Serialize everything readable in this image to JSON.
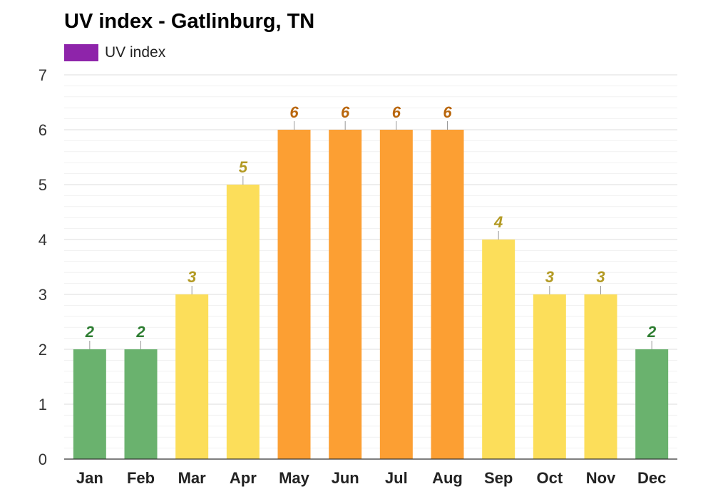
{
  "chart_data": {
    "type": "bar",
    "title": "UV index - Gatlinburg, TN",
    "categories": [
      "Jan",
      "Feb",
      "Mar",
      "Apr",
      "May",
      "Jun",
      "Jul",
      "Aug",
      "Sep",
      "Oct",
      "Nov",
      "Dec"
    ],
    "series": [
      {
        "name": "UV index",
        "values": [
          2,
          2,
          3,
          5,
          6,
          6,
          6,
          6,
          4,
          3,
          3,
          2
        ]
      }
    ],
    "legend": {
      "label": "UV index",
      "color": "#8e24aa",
      "placement": "top-left"
    },
    "ylim": [
      0,
      7
    ],
    "yticks": [
      "0",
      "1",
      "2",
      "3",
      "4",
      "5",
      "6",
      "7"
    ],
    "grid": true,
    "colors": {
      "low": "#6ab26e",
      "moderate": "#fcde5a",
      "high": "#fc9f33",
      "low_label": "#2e7d32",
      "moderate_label": "#b39a24",
      "high_label": "#b9660c"
    }
  }
}
